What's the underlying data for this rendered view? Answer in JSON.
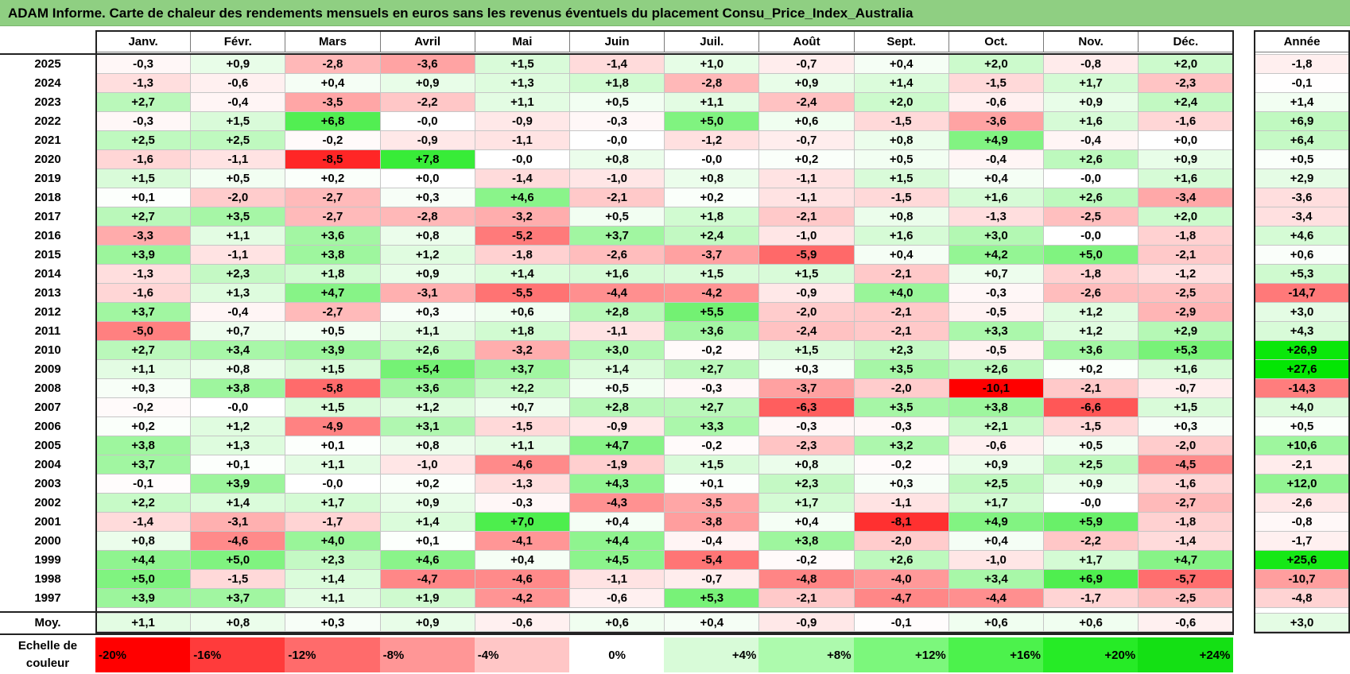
{
  "title": "ADAM Informe. Carte de chaleur des rendements mensuels en euros sans les revenus éventuels du placement Consu_Price_Index_Australia",
  "chart_data": {
    "type": "heatmap",
    "title": "ADAM Informe. Carte de chaleur des rendements mensuels en euros sans les revenus éventuels du placement Consu_Price_Index_Australia",
    "months": [
      "Janv.",
      "Févr.",
      "Mars",
      "Avril",
      "Mai",
      "Juin",
      "Juil.",
      "Août",
      "Sept.",
      "Oct.",
      "Nov.",
      "Déc."
    ],
    "year_header": "Année",
    "rows": [
      {
        "year": "2025",
        "values": [
          "-0,3",
          "+0,9",
          "-2,8",
          "-3,6",
          "+1,5",
          "-1,4",
          "+1,0",
          "-0,7",
          "+0,4",
          "+2,0",
          "-0,8",
          "+2,0"
        ],
        "annual": "-1,8"
      },
      {
        "year": "2024",
        "values": [
          "-1,3",
          "-0,6",
          "+0,4",
          "+0,9",
          "+1,3",
          "+1,8",
          "-2,8",
          "+0,9",
          "+1,4",
          "-1,5",
          "+1,7",
          "-2,3"
        ],
        "annual": "-0,1"
      },
      {
        "year": "2023",
        "values": [
          "+2,7",
          "-0,4",
          "-3,5",
          "-2,2",
          "+1,1",
          "+0,5",
          "+1,1",
          "-2,4",
          "+2,0",
          "-0,6",
          "+0,9",
          "+2,4"
        ],
        "annual": "+1,4"
      },
      {
        "year": "2022",
        "values": [
          "-0,3",
          "+1,5",
          "+6,8",
          "-0,0",
          "-0,9",
          "-0,3",
          "+5,0",
          "+0,6",
          "-1,5",
          "-3,6",
          "+1,6",
          "-1,6"
        ],
        "annual": "+6,9"
      },
      {
        "year": "2021",
        "values": [
          "+2,5",
          "+2,5",
          "-0,2",
          "-0,9",
          "-1,1",
          "-0,0",
          "-1,2",
          "-0,7",
          "+0,8",
          "+4,9",
          "-0,4",
          "+0,0"
        ],
        "annual": "+6,4"
      },
      {
        "year": "2020",
        "values": [
          "-1,6",
          "-1,1",
          "-8,5",
          "+7,8",
          "-0,0",
          "+0,8",
          "-0,0",
          "+0,2",
          "+0,5",
          "-0,4",
          "+2,6",
          "+0,9"
        ],
        "annual": "+0,5"
      },
      {
        "year": "2019",
        "values": [
          "+1,5",
          "+0,5",
          "+0,2",
          "+0,0",
          "-1,4",
          "-1,0",
          "+0,8",
          "-1,1",
          "+1,5",
          "+0,4",
          "-0,0",
          "+1,6"
        ],
        "annual": "+2,9"
      },
      {
        "year": "2018",
        "values": [
          "+0,1",
          "-2,0",
          "-2,7",
          "+0,3",
          "+4,6",
          "-2,1",
          "+0,2",
          "-1,1",
          "-1,5",
          "+1,6",
          "+2,6",
          "-3,4"
        ],
        "annual": "-3,6"
      },
      {
        "year": "2017",
        "values": [
          "+2,7",
          "+3,5",
          "-2,7",
          "-2,8",
          "-3,2",
          "+0,5",
          "+1,8",
          "-2,1",
          "+0,8",
          "-1,3",
          "-2,5",
          "+2,0"
        ],
        "annual": "-3,4"
      },
      {
        "year": "2016",
        "values": [
          "-3,3",
          "+1,1",
          "+3,6",
          "+0,8",
          "-5,2",
          "+3,7",
          "+2,4",
          "-1,0",
          "+1,6",
          "+3,0",
          "-0,0",
          "-1,8"
        ],
        "annual": "+4,6"
      },
      {
        "year": "2015",
        "values": [
          "+3,9",
          "-1,1",
          "+3,8",
          "+1,2",
          "-1,8",
          "-2,6",
          "-3,7",
          "-5,9",
          "+0,4",
          "+4,2",
          "+5,0",
          "-2,1"
        ],
        "annual": "+0,6"
      },
      {
        "year": "2014",
        "values": [
          "-1,3",
          "+2,3",
          "+1,8",
          "+0,9",
          "+1,4",
          "+1,6",
          "+1,5",
          "+1,5",
          "-2,1",
          "+0,7",
          "-1,8",
          "-1,2"
        ],
        "annual": "+5,3"
      },
      {
        "year": "2013",
        "values": [
          "-1,6",
          "+1,3",
          "+4,7",
          "-3,1",
          "-5,5",
          "-4,4",
          "-4,2",
          "-0,9",
          "+4,0",
          "-0,3",
          "-2,6",
          "-2,5"
        ],
        "annual": "-14,7"
      },
      {
        "year": "2012",
        "values": [
          "+3,7",
          "-0,4",
          "-2,7",
          "+0,3",
          "+0,6",
          "+2,8",
          "+5,5",
          "-2,0",
          "-2,1",
          "-0,5",
          "+1,2",
          "-2,9"
        ],
        "annual": "+3,0"
      },
      {
        "year": "2011",
        "values": [
          "-5,0",
          "+0,7",
          "+0,5",
          "+1,1",
          "+1,8",
          "-1,1",
          "+3,6",
          "-2,4",
          "-2,1",
          "+3,3",
          "+1,2",
          "+2,9"
        ],
        "annual": "+4,3"
      },
      {
        "year": "2010",
        "values": [
          "+2,7",
          "+3,4",
          "+3,9",
          "+2,6",
          "-3,2",
          "+3,0",
          "-0,2",
          "+1,5",
          "+2,3",
          "-0,5",
          "+3,6",
          "+5,3"
        ],
        "annual": "+26,9"
      },
      {
        "year": "2009",
        "values": [
          "+1,1",
          "+0,8",
          "+1,5",
          "+5,4",
          "+3,7",
          "+1,4",
          "+2,7",
          "+0,3",
          "+3,5",
          "+2,6",
          "+0,2",
          "+1,6"
        ],
        "annual": "+27,6"
      },
      {
        "year": "2008",
        "values": [
          "+0,3",
          "+3,8",
          "-5,8",
          "+3,6",
          "+2,2",
          "+0,5",
          "-0,3",
          "-3,7",
          "-2,0",
          "-10,1",
          "-2,1",
          "-0,7"
        ],
        "annual": "-14,3"
      },
      {
        "year": "2007",
        "values": [
          "-0,2",
          "-0,0",
          "+1,5",
          "+1,2",
          "+0,7",
          "+2,8",
          "+2,7",
          "-6,3",
          "+3,5",
          "+3,8",
          "-6,6",
          "+1,5"
        ],
        "annual": "+4,0"
      },
      {
        "year": "2006",
        "values": [
          "+0,2",
          "+1,2",
          "-4,9",
          "+3,1",
          "-1,5",
          "-0,9",
          "+3,3",
          "-0,3",
          "-0,3",
          "+2,1",
          "-1,5",
          "+0,3"
        ],
        "annual": "+0,5"
      },
      {
        "year": "2005",
        "values": [
          "+3,8",
          "+1,3",
          "+0,1",
          "+0,8",
          "+1,1",
          "+4,7",
          "-0,2",
          "-2,3",
          "+3,2",
          "-0,6",
          "+0,5",
          "-2,0"
        ],
        "annual": "+10,6"
      },
      {
        "year": "2004",
        "values": [
          "+3,7",
          "+0,1",
          "+1,1",
          "-1,0",
          "-4,6",
          "-1,9",
          "+1,5",
          "+0,8",
          "-0,2",
          "+0,9",
          "+2,5",
          "-4,5"
        ],
        "annual": "-2,1"
      },
      {
        "year": "2003",
        "values": [
          "-0,1",
          "+3,9",
          "-0,0",
          "+0,2",
          "-1,3",
          "+4,3",
          "+0,1",
          "+2,3",
          "+0,3",
          "+2,5",
          "+0,9",
          "-1,6"
        ],
        "annual": "+12,0"
      },
      {
        "year": "2002",
        "values": [
          "+2,2",
          "+1,4",
          "+1,7",
          "+0,9",
          "-0,3",
          "-4,3",
          "-3,5",
          "+1,7",
          "-1,1",
          "+1,7",
          "-0,0",
          "-2,7"
        ],
        "annual": "-2,6"
      },
      {
        "year": "2001",
        "values": [
          "-1,4",
          "-3,1",
          "-1,7",
          "+1,4",
          "+7,0",
          "+0,4",
          "-3,8",
          "+0,4",
          "-8,1",
          "+4,9",
          "+5,9",
          "-1,8"
        ],
        "annual": "-0,8"
      },
      {
        "year": "2000",
        "values": [
          "+0,8",
          "-4,6",
          "+4,0",
          "+0,1",
          "-4,1",
          "+4,4",
          "-0,4",
          "+3,8",
          "-2,0",
          "+0,4",
          "-2,2",
          "-1,4"
        ],
        "annual": "-1,7"
      },
      {
        "year": "1999",
        "values": [
          "+4,4",
          "+5,0",
          "+2,3",
          "+4,6",
          "+0,4",
          "+4,5",
          "-5,4",
          "-0,2",
          "+2,6",
          "-1,0",
          "+1,7",
          "+4,7"
        ],
        "annual": "+25,6"
      },
      {
        "year": "1998",
        "values": [
          "+5,0",
          "-1,5",
          "+1,4",
          "-4,7",
          "-4,6",
          "-1,1",
          "-0,7",
          "-4,8",
          "-4,0",
          "+3,4",
          "+6,9",
          "-5,7"
        ],
        "annual": "-10,7"
      },
      {
        "year": "1997",
        "values": [
          "+3,9",
          "+3,7",
          "+1,1",
          "+1,9",
          "-4,2",
          "-0,6",
          "+5,3",
          "-2,1",
          "-4,7",
          "-4,4",
          "-1,7",
          "-2,5"
        ],
        "annual": "-4,8"
      }
    ],
    "average": {
      "label": "Moy.",
      "values": [
        "+1,1",
        "+0,8",
        "+0,3",
        "+0,9",
        "-0,6",
        "+0,6",
        "+0,4",
        "-0,9",
        "-0,1",
        "+0,6",
        "+0,6",
        "-0,6"
      ],
      "annual": "+3,0"
    },
    "color_scale": {
      "label": "Echelle de couleur",
      "stops": [
        "-20%",
        "-16%",
        "-12%",
        "-8%",
        "-4%",
        "0%",
        "+4%",
        "+8%",
        "+12%",
        "+16%",
        "+20%",
        "+24%"
      ],
      "colors": [
        "#ff0000",
        "#ff3b3b",
        "#ff6b6b",
        "#ff9696",
        "#ffc6c6",
        "#ffffff",
        "#d8fbd8",
        "#adfaad",
        "#7cf77c",
        "#4cf24c",
        "#26eb26",
        "#14e014"
      ]
    },
    "colors": {
      "title_bar": "#8fcf82",
      "negative": "#ff0000",
      "positive": "#00e000",
      "neutral": "#ffffff"
    }
  }
}
